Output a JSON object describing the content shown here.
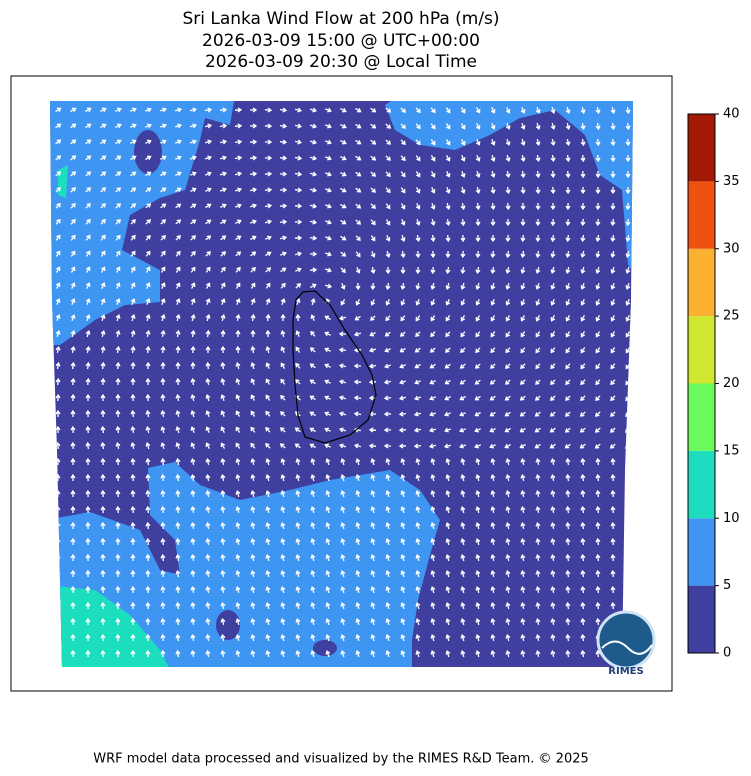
{
  "header": {
    "title": [
      "Sri Lanka Wind Flow at 200 hPa (m/s)",
      "2026-03-09 15:00 @ UTC+00:00",
      "2026-03-09 20:30 @ Local Time"
    ]
  },
  "colorbar": {
    "levels": [
      0,
      5,
      10,
      15,
      20,
      25,
      30,
      35,
      40
    ],
    "colors": [
      "#3f3fa0",
      "#3f96f2",
      "#1cdebf",
      "#6bfa5c",
      "#cfe72f",
      "#fbb031",
      "#ee5112",
      "#a21a06"
    ]
  },
  "logo": "RIMES",
  "footer": "WRF model data processed and visualized by the RIMES R&D Team. © 2025"
}
